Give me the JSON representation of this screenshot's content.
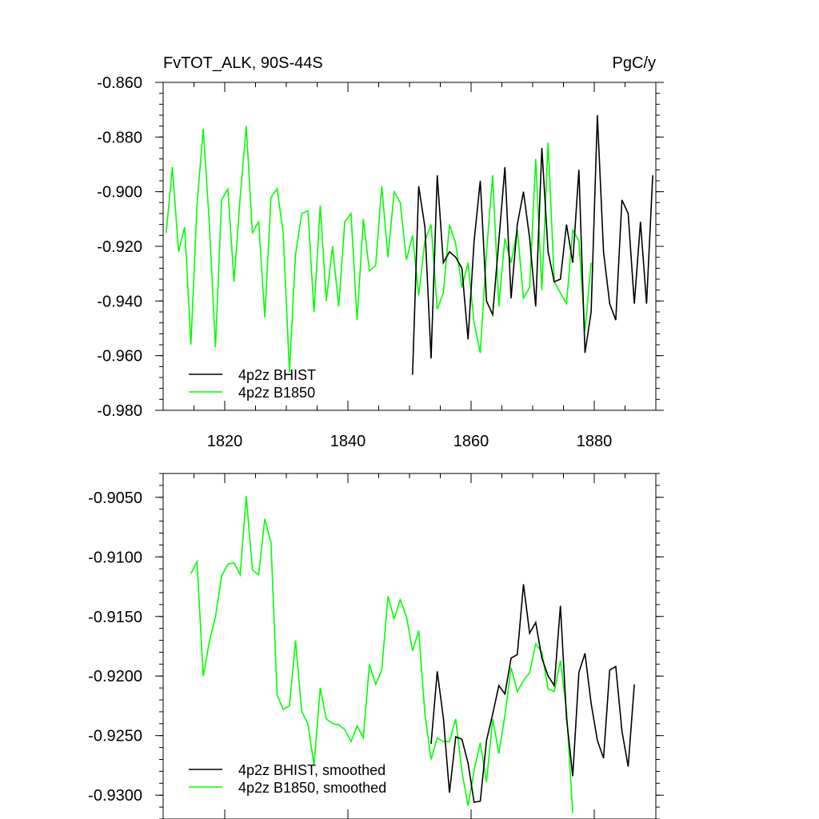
{
  "chart_data": [
    {
      "type": "line",
      "title": "FvTOT_ALK, 90S-44S",
      "units": "PgC/y",
      "xlim": [
        1810,
        1890
      ],
      "ylim": [
        -0.98,
        -0.86
      ],
      "x_ticks": [
        1820,
        1840,
        1860,
        1880
      ],
      "x_tick_labels": [
        "1820",
        "1840",
        "1860",
        "1880"
      ],
      "y_ticks": [
        -0.98,
        -0.96,
        -0.94,
        -0.92,
        -0.9,
        -0.88,
        -0.86
      ],
      "y_tick_labels": [
        "-0.980",
        "-0.960",
        "-0.940",
        "-0.920",
        "-0.900",
        "-0.880",
        "-0.860"
      ],
      "legend": "bottom-left",
      "series": [
        {
          "name": "4p2z BHIST",
          "color": "#000000",
          "x": [
            1850.5,
            1851.5,
            1852.5,
            1853.5,
            1854.5,
            1855.5,
            1856.5,
            1857.5,
            1858.5,
            1859.5,
            1860.5,
            1861.5,
            1862.5,
            1863.5,
            1864.5,
            1865.5,
            1866.5,
            1867.5,
            1868.5,
            1869.5,
            1870.5,
            1871.5,
            1872.5,
            1873.5,
            1874.5,
            1875.5,
            1876.5,
            1877.5,
            1878.5,
            1879.5,
            1880.5,
            1881.5,
            1882.5,
            1883.5,
            1884.5,
            1885.5,
            1886.5,
            1887.5,
            1888.5,
            1889.5
          ],
          "y": [
            -0.967,
            -0.898,
            -0.913,
            -0.961,
            -0.894,
            -0.926,
            -0.922,
            -0.924,
            -0.928,
            -0.954,
            -0.918,
            -0.896,
            -0.94,
            -0.945,
            -0.918,
            -0.891,
            -0.939,
            -0.912,
            -0.9,
            -0.917,
            -0.942,
            -0.884,
            -0.922,
            -0.933,
            -0.932,
            -0.912,
            -0.926,
            -0.892,
            -0.959,
            -0.944,
            -0.872,
            -0.922,
            -0.941,
            -0.947,
            -0.903,
            -0.908,
            -0.941,
            -0.911,
            -0.941,
            -0.894
          ]
        },
        {
          "name": "4p2z B1850",
          "color": "#00ff00",
          "x": [
            1810.5,
            1811.5,
            1812.5,
            1813.5,
            1814.5,
            1815.5,
            1816.5,
            1817.5,
            1818.5,
            1819.5,
            1820.5,
            1821.5,
            1822.5,
            1823.5,
            1824.5,
            1825.5,
            1826.5,
            1827.5,
            1828.5,
            1829.5,
            1830.5,
            1831.5,
            1832.5,
            1833.5,
            1834.5,
            1835.5,
            1836.5,
            1837.5,
            1838.5,
            1839.5,
            1840.5,
            1841.5,
            1842.5,
            1843.5,
            1844.5,
            1845.5,
            1846.5,
            1847.5,
            1848.5,
            1849.5,
            1850.5,
            1851.5,
            1852.5,
            1853.5,
            1854.5,
            1855.5,
            1856.5,
            1857.5,
            1858.5,
            1859.5,
            1860.5,
            1861.5,
            1862.5,
            1863.5,
            1864.5,
            1865.5,
            1866.5,
            1867.5,
            1868.5,
            1869.5,
            1870.5,
            1871.5,
            1872.5,
            1873.5,
            1874.5,
            1875.5,
            1876.5,
            1877.5,
            1878.5,
            1879.5
          ],
          "y": [
            -0.915,
            -0.891,
            -0.922,
            -0.913,
            -0.956,
            -0.905,
            -0.877,
            -0.912,
            -0.957,
            -0.903,
            -0.899,
            -0.933,
            -0.902,
            -0.876,
            -0.915,
            -0.911,
            -0.946,
            -0.902,
            -0.899,
            -0.915,
            -0.966,
            -0.923,
            -0.908,
            -0.907,
            -0.944,
            -0.905,
            -0.94,
            -0.92,
            -0.942,
            -0.911,
            -0.908,
            -0.947,
            -0.91,
            -0.929,
            -0.927,
            -0.898,
            -0.924,
            -0.9,
            -0.904,
            -0.925,
            -0.916,
            -0.938,
            -0.918,
            -0.912,
            -0.943,
            -0.937,
            -0.912,
            -0.919,
            -0.935,
            -0.926,
            -0.948,
            -0.959,
            -0.922,
            -0.894,
            -0.942,
            -0.917,
            -0.926,
            -0.914,
            -0.939,
            -0.935,
            -0.888,
            -0.936,
            -0.882,
            -0.933,
            -0.937,
            -0.941,
            -0.914,
            -0.918,
            -0.951,
            -0.926
          ]
        }
      ]
    },
    {
      "type": "line",
      "xlim": [
        1810,
        1890
      ],
      "ylim": [
        -0.932,
        -0.903
      ],
      "x_ticks": [
        1820,
        1840,
        1860,
        1880
      ],
      "y_ticks": [
        -0.93,
        -0.925,
        -0.92,
        -0.915,
        -0.91,
        -0.905
      ],
      "y_tick_labels": [
        "-0.9300",
        "-0.9250",
        "-0.9200",
        "-0.9150",
        "-0.9100",
        "-0.9050"
      ],
      "legend": "bottom-left",
      "series": [
        {
          "name": "4p2z BHIST, smoothed",
          "color": "#000000",
          "x": [
            1853.5,
            1854.5,
            1855.5,
            1856.5,
            1857.5,
            1858.5,
            1859.5,
            1860.5,
            1861.5,
            1862.5,
            1863.5,
            1864.5,
            1865.5,
            1866.5,
            1867.5,
            1868.5,
            1869.5,
            1870.5,
            1871.5,
            1872.5,
            1873.5,
            1874.5,
            1875.5,
            1876.5,
            1877.5,
            1878.5,
            1879.5,
            1880.5,
            1881.5,
            1882.5,
            1883.5,
            1884.5,
            1885.5,
            1886.5
          ],
          "y": [
            -0.9257,
            -0.9196,
            -0.9235,
            -0.9298,
            -0.9251,
            -0.9253,
            -0.9273,
            -0.9306,
            -0.9305,
            -0.9254,
            -0.9232,
            -0.9208,
            -0.9215,
            -0.9185,
            -0.9182,
            -0.9123,
            -0.9164,
            -0.9155,
            -0.9185,
            -0.92,
            -0.9208,
            -0.9141,
            -0.9235,
            -0.9284,
            -0.9197,
            -0.9181,
            -0.9223,
            -0.9254,
            -0.9269,
            -0.9195,
            -0.9192,
            -0.9246,
            -0.9276,
            -0.9207
          ]
        },
        {
          "name": "4p2z B1850, smoothed",
          "color": "#00ff00",
          "x": [
            1814.5,
            1815.5,
            1816.5,
            1817.5,
            1818.5,
            1819.5,
            1820.5,
            1821.5,
            1822.5,
            1823.5,
            1824.5,
            1825.5,
            1826.5,
            1827.5,
            1828.5,
            1829.5,
            1830.5,
            1831.5,
            1832.5,
            1833.5,
            1834.5,
            1835.5,
            1836.5,
            1837.5,
            1838.5,
            1839.5,
            1840.5,
            1841.5,
            1842.5,
            1843.5,
            1844.5,
            1845.5,
            1846.5,
            1847.5,
            1848.5,
            1849.5,
            1850.5,
            1851.5,
            1852.5,
            1853.5,
            1854.5,
            1855.5,
            1856.5,
            1857.5,
            1858.5,
            1859.5,
            1860.5,
            1861.5,
            1862.5,
            1863.5,
            1864.5,
            1865.5,
            1866.5,
            1867.5,
            1868.5,
            1869.5,
            1870.5,
            1871.5,
            1872.5,
            1873.5,
            1874.5,
            1875.5,
            1876.5
          ],
          "y": [
            -0.9114,
            -0.9104,
            -0.92,
            -0.9171,
            -0.915,
            -0.9116,
            -0.9106,
            -0.9105,
            -0.9115,
            -0.9049,
            -0.9111,
            -0.9115,
            -0.9068,
            -0.9088,
            -0.9216,
            -0.9228,
            -0.9225,
            -0.917,
            -0.923,
            -0.924,
            -0.9275,
            -0.921,
            -0.9236,
            -0.924,
            -0.9241,
            -0.9245,
            -0.9255,
            -0.9242,
            -0.9252,
            -0.919,
            -0.9207,
            -0.9195,
            -0.9133,
            -0.9152,
            -0.9136,
            -0.915,
            -0.9179,
            -0.9162,
            -0.9232,
            -0.927,
            -0.9252,
            -0.9255,
            -0.9255,
            -0.9236,
            -0.928,
            -0.9309,
            -0.9279,
            -0.9256,
            -0.9289,
            -0.9236,
            -0.9265,
            -0.9233,
            -0.9193,
            -0.9213,
            -0.9204,
            -0.9197,
            -0.9173,
            -0.918,
            -0.9211,
            -0.9213,
            -0.9187,
            -0.9229,
            -0.9315
          ]
        }
      ]
    }
  ]
}
